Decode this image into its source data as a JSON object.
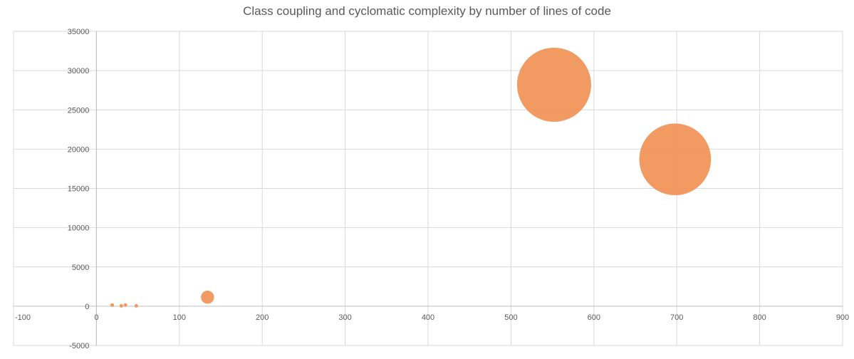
{
  "chart_data": {
    "type": "scatter",
    "variant": "bubble",
    "title": "Class coupling and cyclomatic complexity by number of lines of code",
    "xlabel": "",
    "ylabel": "",
    "xlim": [
      -100,
      900
    ],
    "ylim": [
      -5000,
      35000
    ],
    "x_ticks": [
      -100,
      0,
      100,
      200,
      300,
      400,
      500,
      600,
      700,
      800,
      900
    ],
    "y_ticks": [
      -5000,
      0,
      5000,
      10000,
      15000,
      20000,
      25000,
      30000,
      35000
    ],
    "grid": true,
    "legend": "none",
    "bubble_color": "#f0955a",
    "points": [
      {
        "x": 19,
        "y": 150,
        "size": 12
      },
      {
        "x": 30,
        "y": 50,
        "size": 4
      },
      {
        "x": 35,
        "y": 150,
        "size": 10
      },
      {
        "x": 48,
        "y": 50,
        "size": 6
      },
      {
        "x": 134,
        "y": 1150,
        "size": 150
      },
      {
        "x": 552,
        "y": 28200,
        "size": 4800
      },
      {
        "x": 698,
        "y": 18700,
        "size": 4500
      }
    ]
  }
}
